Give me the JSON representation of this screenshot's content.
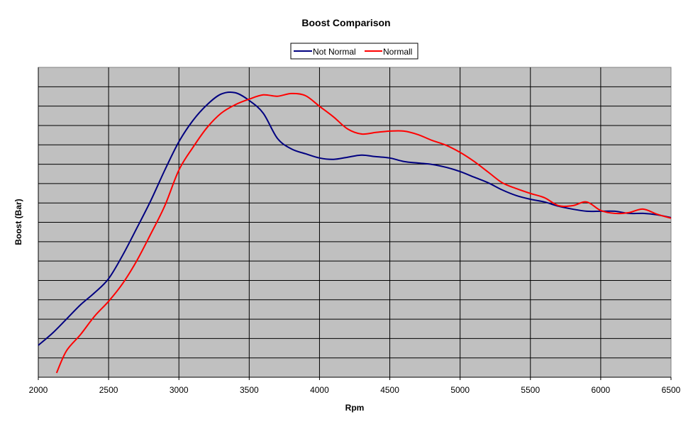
{
  "chart_data": {
    "type": "line",
    "title": "Boost Comparison",
    "xlabel": "Rpm",
    "ylabel": "Boost (Bar)",
    "xlim": [
      2000,
      6500
    ],
    "xticks": [
      2000,
      2500,
      3000,
      3500,
      4000,
      4500,
      5000,
      5500,
      6000,
      6500
    ],
    "ylim": [
      0,
      16
    ],
    "y_tick_labels_shown": false,
    "grid": true,
    "plot_background": "#c0c0c0",
    "legend": "top-center",
    "series": [
      {
        "name": "Not Normal",
        "color": "#000080",
        "x": [
          2000,
          2100,
          2200,
          2300,
          2400,
          2500,
          2600,
          2700,
          2800,
          2900,
          3000,
          3100,
          3200,
          3300,
          3400,
          3500,
          3600,
          3700,
          3800,
          3900,
          4000,
          4100,
          4200,
          4300,
          4400,
          4500,
          4600,
          4700,
          4800,
          4900,
          5000,
          5100,
          5200,
          5300,
          5400,
          5500,
          5600,
          5700,
          5800,
          5900,
          6000,
          6100,
          6200,
          6300,
          6400,
          6500
        ],
        "y": [
          1.65,
          2.27,
          3.0,
          3.74,
          4.36,
          5.09,
          6.3,
          7.69,
          9.12,
          10.7,
          12.16,
          13.26,
          14.07,
          14.62,
          14.69,
          14.29,
          13.63,
          12.34,
          11.79,
          11.54,
          11.32,
          11.25,
          11.36,
          11.47,
          11.39,
          11.32,
          11.14,
          11.06,
          10.99,
          10.84,
          10.62,
          10.33,
          10.04,
          9.67,
          9.38,
          9.19,
          9.05,
          8.83,
          8.68,
          8.57,
          8.57,
          8.57,
          8.46,
          8.46,
          8.39,
          8.24
        ]
      },
      {
        "name": "Normall",
        "color": "#ff0000",
        "x": [
          2130,
          2200,
          2300,
          2400,
          2500,
          2600,
          2700,
          2800,
          2900,
          3000,
          3100,
          3200,
          3300,
          3400,
          3500,
          3600,
          3700,
          3800,
          3900,
          4000,
          4100,
          4200,
          4300,
          4400,
          4500,
          4600,
          4700,
          4800,
          4900,
          5000,
          5100,
          5200,
          5300,
          5400,
          5500,
          5600,
          5700,
          5800,
          5900,
          6000,
          6100,
          6200,
          6300,
          6400,
          6500
        ],
        "y": [
          0.22,
          1.36,
          2.2,
          3.15,
          3.92,
          4.84,
          6.01,
          7.4,
          8.86,
          10.7,
          11.87,
          12.89,
          13.63,
          14.07,
          14.36,
          14.58,
          14.51,
          14.65,
          14.54,
          13.99,
          13.44,
          12.82,
          12.56,
          12.64,
          12.71,
          12.71,
          12.53,
          12.23,
          11.98,
          11.61,
          11.14,
          10.59,
          10.04,
          9.74,
          9.49,
          9.27,
          8.86,
          8.86,
          9.05,
          8.61,
          8.46,
          8.5,
          8.68,
          8.42,
          8.21
        ]
      }
    ]
  }
}
